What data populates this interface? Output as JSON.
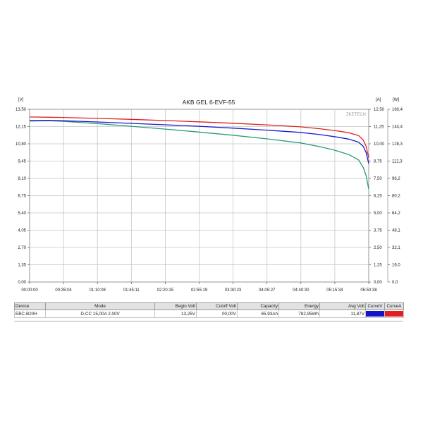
{
  "chart_data": {
    "type": "line",
    "title": "AKB GEL  6-EVF-55",
    "watermark": "ZKETECH",
    "left_axis": {
      "unit": "[V]",
      "range": [
        0,
        13.5
      ],
      "ticks": [
        "0,00",
        "1,35",
        "2,70",
        "4,05",
        "5,40",
        "6,75",
        "8,10",
        "9,45",
        "10,80",
        "12,15",
        "13,50"
      ]
    },
    "right_axis_current": {
      "unit": "[A]",
      "range": [
        0,
        12.5
      ],
      "ticks": [
        "0,00",
        "1,25",
        "2,50",
        "3,75",
        "5,00",
        "6,25",
        "7,50",
        "8,75",
        "10,00",
        "11,25",
        "12,50"
      ]
    },
    "right_axis_power": {
      "unit": "[W]",
      "range": [
        0,
        160.4
      ],
      "ticks": [
        "0,0",
        "16,0",
        "32,1",
        "48,1",
        "64,2",
        "80,2",
        "96,2",
        "112,3",
        "128,3",
        "144,4",
        "160,4"
      ]
    },
    "x_axis": {
      "range": [
        "00:00:00",
        "05:50:38"
      ],
      "ticks": [
        "00:00:00",
        "00:35:04",
        "01:10:08",
        "01:45:11",
        "02:20:15",
        "02:55:19",
        "03:30:23",
        "04:05:27",
        "04:40:30",
        "05:15:34",
        "05:50:38"
      ]
    },
    "grid": true,
    "x_minutes": [
      0,
      20,
      35,
      70,
      105,
      140,
      175,
      210,
      245,
      280,
      300,
      315,
      330,
      340,
      345,
      348,
      350.6
    ],
    "series": [
      {
        "color": "#e02020",
        "axis": "left",
        "values": [
          12.9,
          12.88,
          12.86,
          12.79,
          12.71,
          12.62,
          12.52,
          12.41,
          12.28,
          12.13,
          11.98,
          11.84,
          11.67,
          11.45,
          11.1,
          10.6,
          9.7
        ]
      },
      {
        "color": "#1a1ad0",
        "axis": "left",
        "values": [
          12.62,
          12.63,
          12.6,
          12.51,
          12.4,
          12.29,
          12.17,
          12.03,
          11.87,
          11.69,
          11.52,
          11.36,
          11.17,
          10.93,
          10.6,
          10.1,
          9.25
        ]
      },
      {
        "color": "#2a9a78",
        "axis": "left",
        "values": [
          12.58,
          12.61,
          12.56,
          12.38,
          12.17,
          11.95,
          11.72,
          11.47,
          11.19,
          10.87,
          10.58,
          10.31,
          9.96,
          9.55,
          8.95,
          8.3,
          7.25
        ]
      }
    ]
  },
  "summary": {
    "headers": {
      "device": "Device",
      "mode": "Mode",
      "begin_volt": "Begin Volt",
      "cutoff_volt": "Cutoff Volt",
      "capacity": "Capacity",
      "energy": "Energy",
      "avg_volt": "Avg Volt",
      "curve_v": "CurveV",
      "curve_a": "CurveA"
    },
    "row": {
      "device": "EBC-B20H",
      "mode": "D-CC 15,00A  2,00V",
      "begin_volt": "13,25V",
      "cutoff_volt": "00,00V",
      "capacity": "65,93Ah",
      "energy": "782,95Wh",
      "avg_volt": "11,87V"
    },
    "colors": {
      "curve_v": "#1515c8",
      "curve_a": "#e02020"
    }
  }
}
